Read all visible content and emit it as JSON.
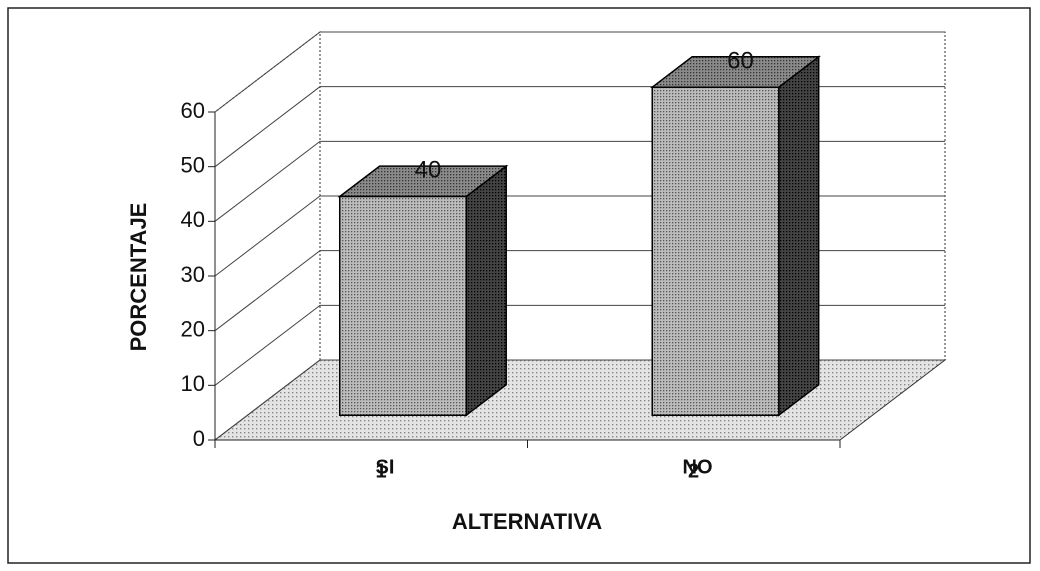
{
  "chart_data": {
    "type": "bar3d",
    "categories": [
      "SI",
      "NO"
    ],
    "category_codes": [
      "1",
      "2"
    ],
    "values": [
      40,
      60
    ],
    "ylim": [
      0,
      60
    ],
    "yticks": [
      0,
      10,
      20,
      30,
      40,
      50,
      60
    ],
    "ylabel": "PORCENTAJE",
    "xlabel": "ALTERNATIVA",
    "grid": true
  }
}
